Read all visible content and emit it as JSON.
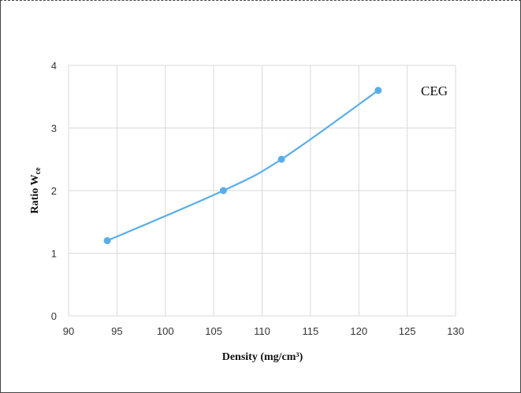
{
  "chart_data": {
    "type": "scatter",
    "title": "",
    "xlabel": "Density (mg/cm³)",
    "ylabel": "Ratio W",
    "ylabel_subscript": "ce",
    "xlim": [
      90,
      130
    ],
    "ylim": [
      0,
      4
    ],
    "xticks": [
      "90",
      "95",
      "100",
      "105",
      "110",
      "115",
      "120",
      "125",
      "130"
    ],
    "yticks": [
      "0",
      "1",
      "2",
      "3",
      "4"
    ],
    "grid": true,
    "line": "smooth",
    "annotation": "CEG",
    "series": [
      {
        "name": "CEG",
        "color": "#5aaee8",
        "x": [
          94,
          106,
          112,
          122
        ],
        "y": [
          1.2,
          2.0,
          2.5,
          3.6
        ]
      }
    ]
  }
}
